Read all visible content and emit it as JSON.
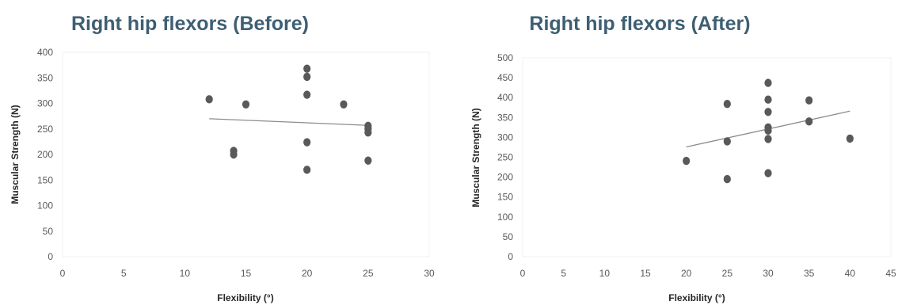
{
  "chart_data": [
    {
      "type": "scatter",
      "title": "Right hip flexors (Before)",
      "xlabel": "Flexibility (°)",
      "ylabel": "Muscular Strength (N)",
      "xlim": [
        0,
        30
      ],
      "ylim": [
        0,
        400
      ],
      "xticks": [
        "0",
        "5",
        "10",
        "15",
        "20",
        "25",
        "30"
      ],
      "yticks": [
        "0",
        "50",
        "100",
        "150",
        "200",
        "250",
        "300",
        "350",
        "400"
      ],
      "grid": false,
      "legend": "none",
      "marker_color": "#595959",
      "trendline_color": "#8c8c8c",
      "points": [
        {
          "x": 12,
          "y": 308
        },
        {
          "x": 14,
          "y": 207
        },
        {
          "x": 14,
          "y": 200
        },
        {
          "x": 15,
          "y": 298
        },
        {
          "x": 20,
          "y": 368
        },
        {
          "x": 20,
          "y": 352
        },
        {
          "x": 20,
          "y": 317
        },
        {
          "x": 20,
          "y": 224
        },
        {
          "x": 20,
          "y": 170
        },
        {
          "x": 23,
          "y": 298
        },
        {
          "x": 25,
          "y": 256
        },
        {
          "x": 25,
          "y": 250
        },
        {
          "x": 25,
          "y": 243
        },
        {
          "x": 25,
          "y": 188
        }
      ],
      "trendline": {
        "type": "linear",
        "x": [
          12,
          25
        ],
        "y": [
          270,
          257
        ]
      }
    },
    {
      "type": "scatter",
      "title": "Right hip flexors (After)",
      "xlabel": "Flexibility (°)",
      "ylabel": "Muscular Strength  (N)",
      "xlim": [
        0,
        45
      ],
      "ylim": [
        0,
        500
      ],
      "xticks": [
        "0",
        "5",
        "10",
        "15",
        "20",
        "25",
        "30",
        "35",
        "40",
        "45"
      ],
      "yticks": [
        "0",
        "50",
        "100",
        "150",
        "200",
        "250",
        "300",
        "350",
        "400",
        "450",
        "500"
      ],
      "grid": false,
      "legend": "none",
      "marker_color": "#595959",
      "trendline_color": "#8c8c8c",
      "points": [
        {
          "x": 20,
          "y": 241
        },
        {
          "x": 25,
          "y": 384
        },
        {
          "x": 25,
          "y": 290
        },
        {
          "x": 25,
          "y": 195
        },
        {
          "x": 30,
          "y": 437
        },
        {
          "x": 30,
          "y": 395
        },
        {
          "x": 30,
          "y": 364
        },
        {
          "x": 30,
          "y": 325
        },
        {
          "x": 30,
          "y": 317
        },
        {
          "x": 30,
          "y": 296
        },
        {
          "x": 30,
          "y": 210
        },
        {
          "x": 35,
          "y": 393
        },
        {
          "x": 35,
          "y": 340
        },
        {
          "x": 40,
          "y": 297
        }
      ],
      "trendline": {
        "type": "linear",
        "x": [
          20,
          40
        ],
        "y": [
          276,
          366
        ]
      }
    }
  ]
}
